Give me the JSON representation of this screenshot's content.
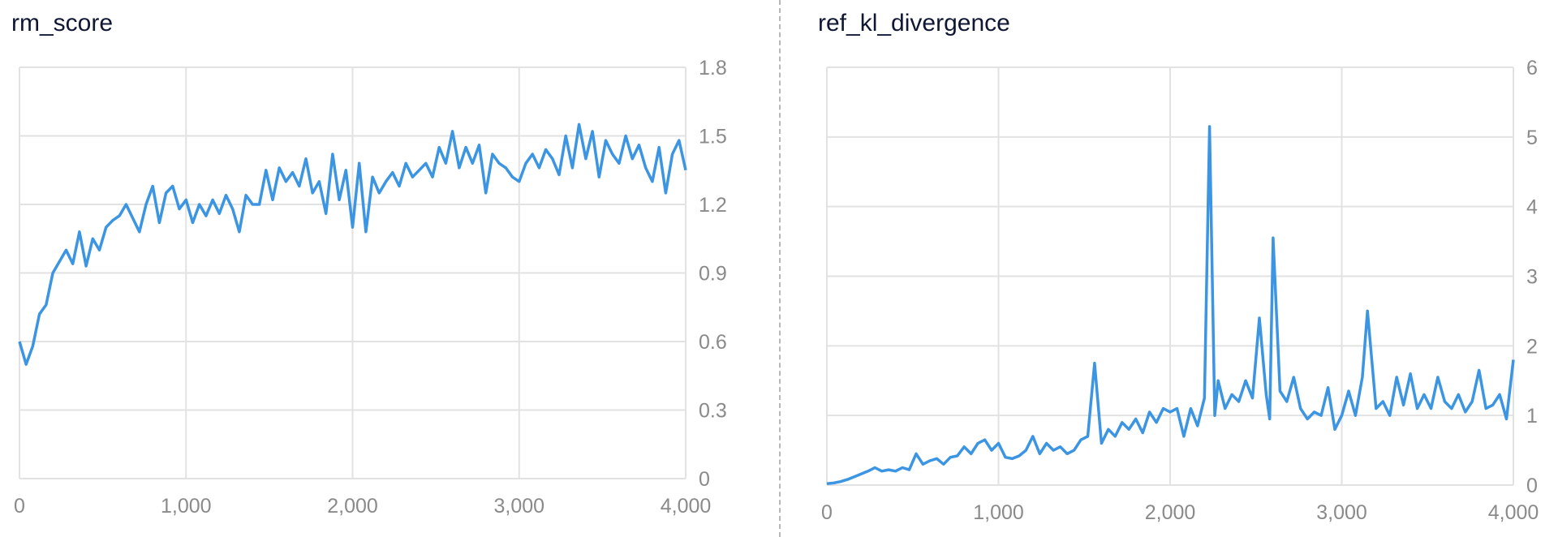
{
  "chart_data": [
    {
      "type": "line",
      "title": "rm_score",
      "xlabel": "",
      "ylabel": "",
      "xlim": [
        0,
        4000
      ],
      "ylim": [
        0,
        1.8
      ],
      "xticks": [
        0,
        1000,
        2000,
        3000,
        4000
      ],
      "xtick_labels": [
        "0",
        "1,000",
        "2,000",
        "3,000",
        "4,000"
      ],
      "yticks": [
        0,
        0.3,
        0.6,
        0.9,
        1.2,
        1.5,
        1.8
      ],
      "ytick_labels": [
        "0",
        "0.3",
        "0.6",
        "0.9",
        "1.2",
        "1.5",
        "1.8"
      ],
      "grid": true,
      "color": "#3b95e3",
      "series": [
        {
          "name": "rm_score",
          "x": [
            0,
            40,
            80,
            120,
            160,
            200,
            240,
            280,
            320,
            360,
            400,
            440,
            480,
            520,
            560,
            600,
            640,
            680,
            720,
            760,
            800,
            840,
            880,
            920,
            960,
            1000,
            1040,
            1080,
            1120,
            1160,
            1200,
            1240,
            1280,
            1320,
            1360,
            1400,
            1440,
            1480,
            1520,
            1560,
            1600,
            1640,
            1680,
            1720,
            1760,
            1800,
            1840,
            1880,
            1920,
            1960,
            2000,
            2040,
            2080,
            2120,
            2160,
            2200,
            2240,
            2280,
            2320,
            2360,
            2400,
            2440,
            2480,
            2520,
            2560,
            2600,
            2640,
            2680,
            2720,
            2760,
            2800,
            2840,
            2880,
            2920,
            2960,
            3000,
            3040,
            3080,
            3120,
            3160,
            3200,
            3240,
            3280,
            3320,
            3360,
            3400,
            3440,
            3480,
            3520,
            3560,
            3600,
            3640,
            3680,
            3720,
            3760,
            3800,
            3840,
            3880,
            3920,
            3960,
            4000
          ],
          "y": [
            0.6,
            0.5,
            0.58,
            0.72,
            0.76,
            0.9,
            0.95,
            1.0,
            0.94,
            1.08,
            0.93,
            1.05,
            1.0,
            1.1,
            1.13,
            1.15,
            1.2,
            1.14,
            1.08,
            1.2,
            1.28,
            1.12,
            1.25,
            1.28,
            1.18,
            1.22,
            1.12,
            1.2,
            1.15,
            1.22,
            1.16,
            1.24,
            1.18,
            1.08,
            1.24,
            1.2,
            1.2,
            1.35,
            1.22,
            1.36,
            1.3,
            1.34,
            1.28,
            1.4,
            1.25,
            1.3,
            1.16,
            1.42,
            1.22,
            1.35,
            1.1,
            1.38,
            1.08,
            1.32,
            1.25,
            1.3,
            1.34,
            1.28,
            1.38,
            1.32,
            1.35,
            1.38,
            1.32,
            1.45,
            1.38,
            1.52,
            1.36,
            1.45,
            1.38,
            1.46,
            1.25,
            1.42,
            1.38,
            1.36,
            1.32,
            1.3,
            1.38,
            1.42,
            1.36,
            1.44,
            1.4,
            1.33,
            1.5,
            1.36,
            1.55,
            1.4,
            1.52,
            1.32,
            1.48,
            1.42,
            1.38,
            1.5,
            1.4,
            1.46,
            1.36,
            1.3,
            1.45,
            1.25,
            1.42,
            1.48,
            1.35
          ]
        }
      ]
    },
    {
      "type": "line",
      "title": "ref_kl_divergence",
      "xlabel": "",
      "ylabel": "",
      "xlim": [
        0,
        4000
      ],
      "ylim": [
        0,
        6
      ],
      "xticks": [
        0,
        1000,
        2000,
        3000,
        4000
      ],
      "xtick_labels": [
        "0",
        "1,000",
        "2,000",
        "3,000",
        "4,000"
      ],
      "yticks": [
        0,
        1,
        2,
        3,
        4,
        5,
        6
      ],
      "ytick_labels": [
        "0",
        "1",
        "2",
        "3",
        "4",
        "5",
        "6"
      ],
      "grid": true,
      "color": "#3b95e3",
      "series": [
        {
          "name": "ref_kl_divergence",
          "x": [
            0,
            40,
            80,
            120,
            160,
            200,
            240,
            280,
            320,
            360,
            400,
            440,
            480,
            520,
            560,
            600,
            640,
            680,
            720,
            760,
            800,
            840,
            880,
            920,
            960,
            1000,
            1040,
            1080,
            1120,
            1160,
            1200,
            1240,
            1280,
            1320,
            1360,
            1400,
            1440,
            1480,
            1520,
            1560,
            1600,
            1640,
            1680,
            1720,
            1760,
            1800,
            1840,
            1880,
            1920,
            1960,
            2000,
            2040,
            2080,
            2120,
            2160,
            2200,
            2230,
            2260,
            2280,
            2320,
            2360,
            2400,
            2440,
            2480,
            2520,
            2560,
            2580,
            2600,
            2640,
            2680,
            2720,
            2760,
            2800,
            2840,
            2880,
            2920,
            2960,
            3000,
            3040,
            3080,
            3120,
            3150,
            3200,
            3240,
            3280,
            3320,
            3360,
            3400,
            3440,
            3480,
            3520,
            3560,
            3600,
            3640,
            3680,
            3720,
            3760,
            3800,
            3840,
            3880,
            3920,
            3960,
            4000
          ],
          "y": [
            0.02,
            0.03,
            0.05,
            0.08,
            0.12,
            0.16,
            0.2,
            0.25,
            0.2,
            0.22,
            0.2,
            0.25,
            0.22,
            0.45,
            0.3,
            0.35,
            0.38,
            0.3,
            0.4,
            0.42,
            0.55,
            0.45,
            0.6,
            0.65,
            0.5,
            0.6,
            0.4,
            0.38,
            0.42,
            0.5,
            0.7,
            0.45,
            0.6,
            0.5,
            0.55,
            0.45,
            0.5,
            0.65,
            0.7,
            1.75,
            0.6,
            0.8,
            0.7,
            0.9,
            0.8,
            0.95,
            0.75,
            1.05,
            0.9,
            1.1,
            1.05,
            1.1,
            0.7,
            1.1,
            0.85,
            1.25,
            5.15,
            1.0,
            1.5,
            1.1,
            1.3,
            1.2,
            1.5,
            1.25,
            2.4,
            1.3,
            0.95,
            3.55,
            1.35,
            1.2,
            1.55,
            1.1,
            0.95,
            1.05,
            1.0,
            1.4,
            0.8,
            1.0,
            1.35,
            1.0,
            1.55,
            2.5,
            1.1,
            1.2,
            1.0,
            1.55,
            1.15,
            1.6,
            1.1,
            1.3,
            1.1,
            1.55,
            1.2,
            1.1,
            1.3,
            1.05,
            1.2,
            1.65,
            1.1,
            1.15,
            1.3,
            0.95,
            1.8
          ]
        }
      ]
    }
  ]
}
